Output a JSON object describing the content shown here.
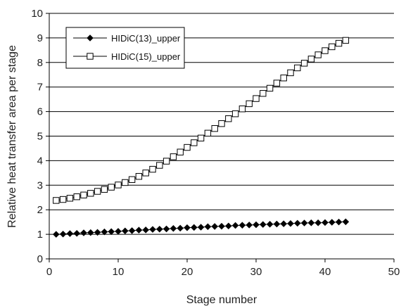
{
  "chart_data": {
    "type": "line",
    "xlabel": "Stage number",
    "ylabel": "Relative heat transfer area per stage",
    "xlim": [
      0,
      50
    ],
    "ylim": [
      0,
      10
    ],
    "xticks": [
      0,
      10,
      20,
      30,
      40,
      50
    ],
    "yticks": [
      0,
      1,
      2,
      3,
      4,
      5,
      6,
      7,
      8,
      9,
      10
    ],
    "grid": "horizontal",
    "legend_position": "top-left",
    "x": [
      1,
      2,
      3,
      4,
      5,
      6,
      7,
      8,
      9,
      10,
      11,
      12,
      13,
      14,
      15,
      16,
      17,
      18,
      19,
      20,
      21,
      22,
      23,
      24,
      25,
      26,
      27,
      28,
      29,
      30,
      31,
      32,
      33,
      34,
      35,
      36,
      37,
      38,
      39,
      40,
      41,
      42,
      43
    ],
    "series": [
      {
        "name": "HIDiC(13)_upper",
        "marker": "filled-diamond",
        "color": "#000000",
        "values": [
          1.0,
          1.01,
          1.03,
          1.04,
          1.06,
          1.07,
          1.08,
          1.1,
          1.11,
          1.12,
          1.14,
          1.15,
          1.17,
          1.18,
          1.2,
          1.21,
          1.22,
          1.24,
          1.25,
          1.27,
          1.28,
          1.29,
          1.31,
          1.32,
          1.33,
          1.34,
          1.36,
          1.37,
          1.38,
          1.39,
          1.4,
          1.41,
          1.42,
          1.43,
          1.44,
          1.45,
          1.46,
          1.47,
          1.47,
          1.48,
          1.49,
          1.5,
          1.51
        ]
      },
      {
        "name": "HIDiC(15)_upper",
        "marker": "open-square",
        "color": "#000000",
        "values": [
          2.38,
          2.42,
          2.47,
          2.53,
          2.6,
          2.67,
          2.75,
          2.83,
          2.92,
          3.01,
          3.11,
          3.23,
          3.36,
          3.5,
          3.65,
          3.81,
          3.98,
          4.16,
          4.35,
          4.54,
          4.73,
          4.92,
          5.12,
          5.31,
          5.51,
          5.71,
          5.91,
          6.11,
          6.32,
          6.53,
          6.74,
          6.95,
          7.16,
          7.37,
          7.58,
          7.78,
          7.97,
          8.14,
          8.31,
          8.48,
          8.64,
          8.78,
          8.9
        ]
      }
    ]
  }
}
